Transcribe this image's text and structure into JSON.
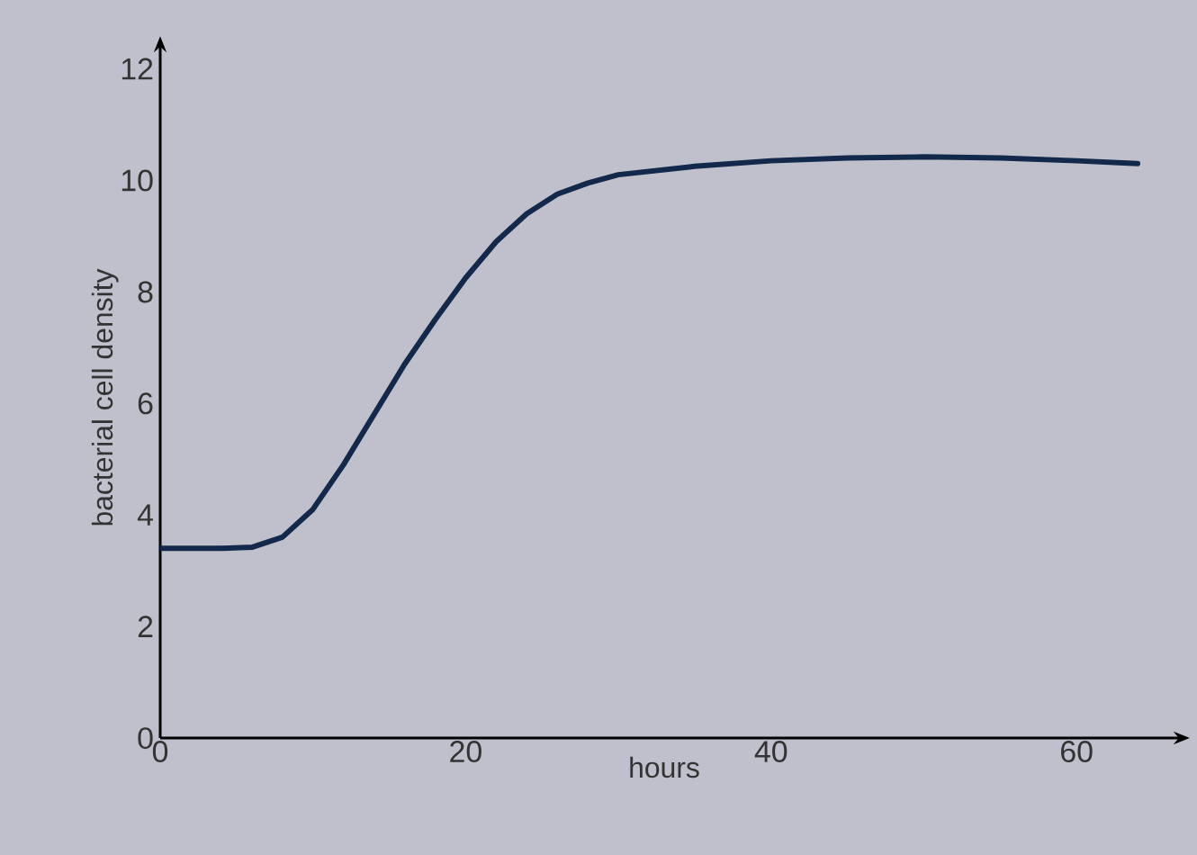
{
  "chart_data": {
    "type": "line",
    "xlabel": "hours",
    "ylabel": "bacterial cell density",
    "xlim": [
      0,
      66
    ],
    "ylim": [
      0,
      12.2
    ],
    "xticks": [
      0,
      20,
      40,
      60
    ],
    "yticks": [
      0,
      2,
      4,
      6,
      8,
      10,
      12
    ],
    "grid": false,
    "marker": "none",
    "line_style": "solid",
    "x": [
      0,
      4,
      6,
      8,
      10,
      12,
      14,
      16,
      18,
      20,
      22,
      24,
      26,
      28,
      30,
      35,
      40,
      45,
      50,
      55,
      60,
      64
    ],
    "series": [
      {
        "color": "#13294b",
        "values": [
          3.4,
          3.4,
          3.42,
          3.6,
          4.1,
          4.9,
          5.8,
          6.7,
          7.5,
          8.25,
          8.9,
          9.4,
          9.75,
          9.95,
          10.1,
          10.25,
          10.35,
          10.4,
          10.42,
          10.4,
          10.35,
          10.3
        ]
      }
    ]
  }
}
